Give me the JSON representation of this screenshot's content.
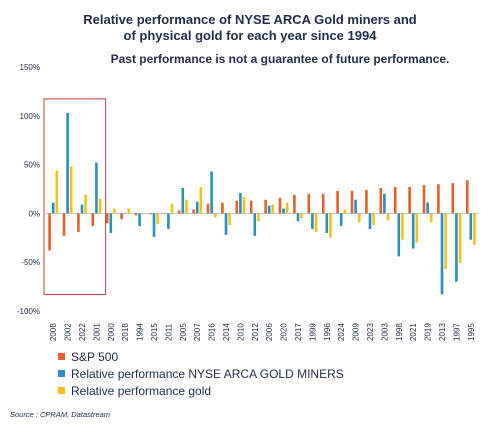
{
  "chart_data": {
    "type": "bar",
    "title_line1": "Relative performance of NYSE ARCA Gold miners and",
    "title_line2": "of physical gold for each year since 1994",
    "subtitle": "Past performance is not a guarantee of future performance.",
    "source": "Source : CPRAM, Datastream",
    "ylim": [
      -100,
      150
    ],
    "yticks": [
      -100,
      -50,
      0,
      50,
      100,
      150
    ],
    "ytick_labels": [
      "-100%",
      "-50%",
      "0%",
      "50%",
      "100%",
      "150%"
    ],
    "categories": [
      "2008",
      "2002",
      "2022",
      "2001",
      "2000",
      "2018",
      "1994",
      "2015",
      "2011",
      "2005",
      "2007",
      "2016",
      "2014",
      "2010",
      "2012",
      "2006",
      "2020",
      "2017",
      "1999",
      "1996",
      "2024",
      "2009",
      "2023",
      "2003",
      "1998",
      "2021",
      "2019",
      "2013",
      "1997",
      "1995"
    ],
    "series": [
      {
        "name": "S&P 500",
        "color": "#e2622b",
        "values": [
          -38,
          -23,
          -19,
          -13,
          -10,
          -6,
          -2,
          -1,
          0,
          3,
          4,
          10,
          11,
          13,
          13,
          14,
          16,
          19,
          20,
          20,
          23,
          23,
          24,
          26,
          27,
          27,
          29,
          30,
          31,
          34
        ]
      },
      {
        "name": "Relative performance NYSE ARCA GOLD MINERS",
        "color": "#2a8fc0",
        "values": [
          11,
          103,
          9,
          52,
          -20,
          0,
          -13,
          -24,
          -16,
          26,
          12,
          43,
          -22,
          21,
          -23,
          8,
          5,
          -8,
          -16,
          -20,
          -13,
          14,
          -16,
          20,
          -44,
          -36,
          11,
          -83,
          -70,
          -27
        ]
      },
      {
        "name": "Relative performance gold",
        "color": "#f2c21b",
        "values": [
          44,
          48,
          19,
          15,
          5,
          5,
          0,
          -11,
          10,
          14,
          27,
          -4,
          -12,
          17,
          -8,
          9,
          11,
          -5,
          -19,
          -25,
          4,
          -9,
          -12,
          -7,
          -27,
          -30,
          -9,
          -57,
          -51,
          -32
        ]
      }
    ],
    "highlight_categories": [
      "2008",
      "2002",
      "2022",
      "2001"
    ],
    "grid": false
  }
}
